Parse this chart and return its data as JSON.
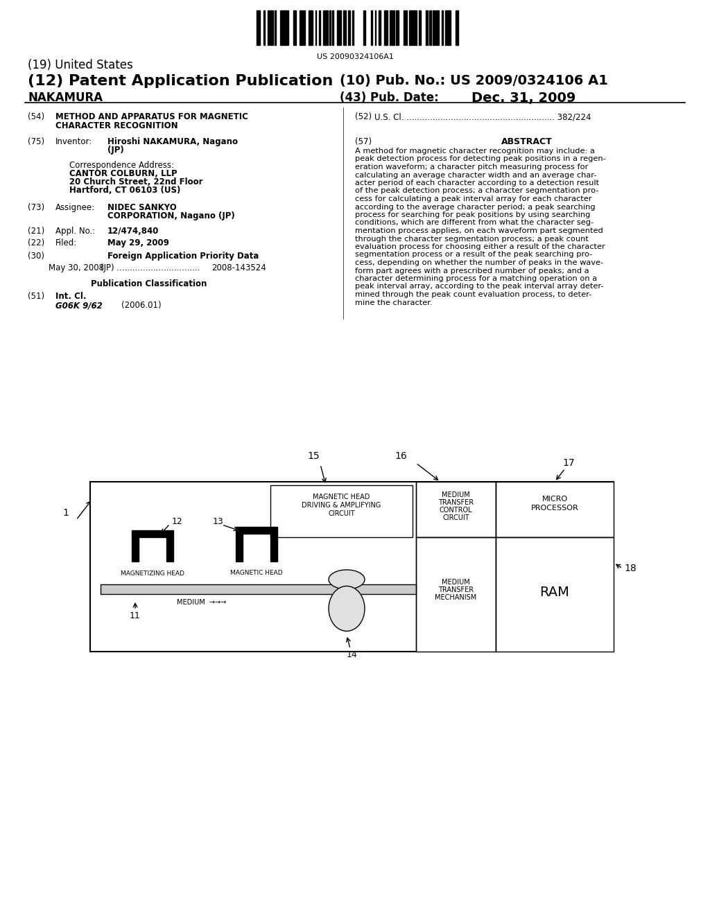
{
  "bg_color": "#ffffff",
  "barcode_text": "US 20090324106A1",
  "title19": "(19) United States",
  "title12": "(12) Patent Application Publication",
  "pub_no_label": "(10) Pub. No.:",
  "pub_no": "US 2009/0324106 A1",
  "inventor_name": "NAKAMURA",
  "pub_date_label": "(43) Pub. Date:",
  "pub_date": "Dec. 31, 2009",
  "field54_label": "(54)",
  "field52_label": "(52)",
  "field52": "U.S. Cl. ......................................................... 382/224",
  "field75_label": "(75)",
  "field75_title": "Inventor:",
  "field57_label": "(57)",
  "field57_title": "ABSTRACT",
  "field73_label": "(73)",
  "field73_title": "Assignee:",
  "field21_label": "(21)",
  "field21_title": "Appl. No.:",
  "field21_value": "12/474,840",
  "field22_label": "(22)",
  "field22_title": "Filed:",
  "field22_value": "May 29, 2009",
  "field30_label": "(30)",
  "field30_title": "Foreign Application Priority Data",
  "pub_class_title": "Publication Classification",
  "field51_label": "(51)",
  "field51_title": "Int. Cl.",
  "field51_class": "G06K 9/62",
  "field51_year": "(2006.01)",
  "abstract_lines": [
    "A method for magnetic character recognition may include: a",
    "peak detection process for detecting peak positions in a regen-",
    "eration waveform; a character pitch measuring process for",
    "calculating an average character width and an average char-",
    "acter period of each character according to a detection result",
    "of the peak detection process; a character segmentation pro-",
    "cess for calculating a peak interval array for each character",
    "according to the average character period; a peak searching",
    "process for searching for peak positions by using searching",
    "conditions, which are different from what the character seg-",
    "mentation process applies, on each waveform part segmented",
    "through the character segmentation process; a peak count",
    "evaluation process for choosing either a result of the character",
    "segmentation process or a result of the peak searching pro-",
    "cess, depending on whether the number of peaks in the wave-",
    "form part agrees with a prescribed number of peaks; and a",
    "character determining process for a matching operation on a",
    "peak interval array, according to the peak interval array deter-",
    "mined through the peak count evaluation process, to deter-",
    "mine the character."
  ]
}
